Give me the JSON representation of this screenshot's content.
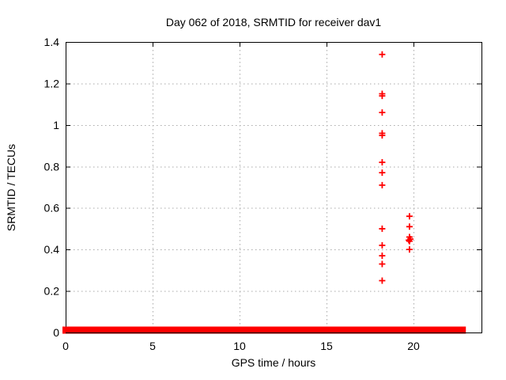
{
  "chart_data": {
    "type": "scatter",
    "title": "Day 062 of 2018, SRMTID for receiver dav1",
    "xlabel": "GPS time / hours",
    "ylabel": "SRMTID / TECUs",
    "xlim": [
      0,
      23.91
    ],
    "ylim": [
      0,
      1.4
    ],
    "xtick_values": [
      0,
      5,
      10,
      15,
      20
    ],
    "xtick_labels": [
      "0",
      "5",
      "10",
      "15",
      "20"
    ],
    "ytick_values": [
      0,
      0.2,
      0.4,
      0.6,
      0.8,
      1,
      1.2,
      1.4
    ],
    "ytick_labels": [
      "0",
      "0.2",
      "0.4",
      "0.6",
      "0.8",
      "1",
      "1.2",
      "1.4"
    ],
    "grid": true,
    "legend": "none",
    "marker": "plus",
    "series_color": "#ff0000",
    "grid_color": "#aaaaaa",
    "border_color": "#000000",
    "zero_band_segments": [
      [
        0.0,
        18.18
      ],
      [
        18.42,
        19.72
      ],
      [
        19.95,
        22.83
      ]
    ],
    "outliers": [
      {
        "x": 18.2,
        "y": 1.34
      },
      {
        "x": 18.2,
        "y": 1.15
      },
      {
        "x": 18.2,
        "y": 1.14
      },
      {
        "x": 18.2,
        "y": 1.06
      },
      {
        "x": 18.2,
        "y": 0.96
      },
      {
        "x": 18.2,
        "y": 0.95
      },
      {
        "x": 18.2,
        "y": 0.82
      },
      {
        "x": 18.2,
        "y": 0.77
      },
      {
        "x": 18.2,
        "y": 0.71
      },
      {
        "x": 18.2,
        "y": 0.5
      },
      {
        "x": 18.2,
        "y": 0.42
      },
      {
        "x": 18.2,
        "y": 0.37
      },
      {
        "x": 18.2,
        "y": 0.33
      },
      {
        "x": 18.2,
        "y": 0.25
      },
      {
        "x": 19.77,
        "y": 0.56
      },
      {
        "x": 19.77,
        "y": 0.51
      },
      {
        "x": 19.77,
        "y": 0.46
      },
      {
        "x": 19.82,
        "y": 0.45
      },
      {
        "x": 19.73,
        "y": 0.445
      },
      {
        "x": 19.77,
        "y": 0.44
      },
      {
        "x": 19.77,
        "y": 0.4
      }
    ]
  }
}
